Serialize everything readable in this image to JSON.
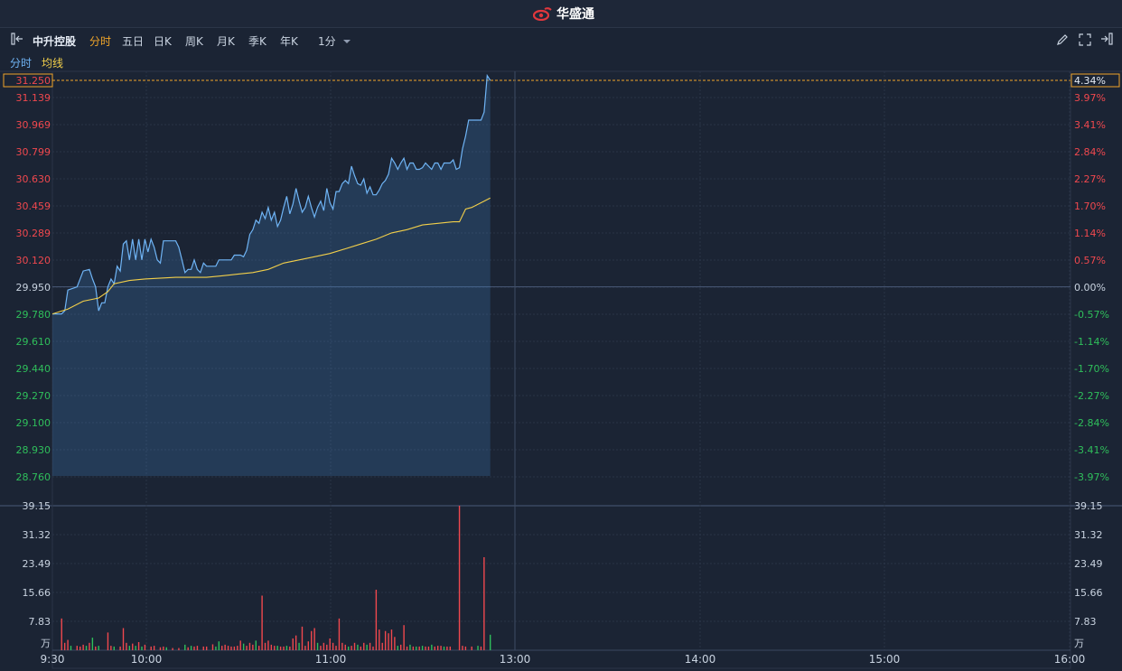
{
  "brand": {
    "name": "华盛通"
  },
  "toolbar": {
    "stock_name": "中升控股",
    "periods": [
      "分时",
      "五日",
      "日K",
      "周K",
      "月K",
      "季K",
      "年K"
    ],
    "interval": "1分"
  },
  "legend": {
    "price_label": "分时",
    "avg_label": "均线"
  },
  "colors": {
    "up": "#f0484e",
    "down": "#2fbf5b",
    "price_line": "#6fb4f5",
    "avg_line": "#f2cf4a",
    "accent": "#f0a52a"
  },
  "chart_data": {
    "type": "line",
    "prev_close": 29.95,
    "current_price_label": "31.250",
    "current_pct_label": "4.34%",
    "price_ticks": [
      "31.139",
      "30.969",
      "30.799",
      "30.630",
      "30.459",
      "30.289",
      "30.120",
      "29.950",
      "29.780",
      "29.610",
      "29.440",
      "29.270",
      "29.100",
      "28.930",
      "28.760"
    ],
    "pct_ticks": [
      "3.97%",
      "3.41%",
      "2.84%",
      "2.27%",
      "1.70%",
      "1.14%",
      "0.57%",
      "0.00%",
      "-0.57%",
      "-1.14%",
      "-1.70%",
      "-2.27%",
      "-2.84%",
      "-3.41%",
      "-3.97%"
    ],
    "x_ticks": [
      "9:30",
      "10:00",
      "11:00",
      "13:00",
      "14:00",
      "15:00",
      "16:00"
    ],
    "volume_ticks": [
      "39.15",
      "31.32",
      "23.49",
      "15.66",
      "7.83"
    ],
    "volume_unit": "万",
    "ylim": [
      28.76,
      31.25
    ],
    "volume_max": 39.15,
    "price_series": [
      [
        0,
        29.78
      ],
      [
        3,
        29.78
      ],
      [
        4,
        29.8
      ],
      [
        5,
        29.93
      ],
      [
        8,
        29.95
      ],
      [
        10,
        30.05
      ],
      [
        12,
        30.06
      ],
      [
        13,
        30.0
      ],
      [
        14,
        29.95
      ],
      [
        15,
        29.8
      ],
      [
        16,
        29.85
      ],
      [
        17,
        29.85
      ],
      [
        18,
        29.95
      ],
      [
        19,
        30.0
      ],
      [
        20,
        29.97
      ],
      [
        21,
        30.08
      ],
      [
        22,
        30.05
      ],
      [
        23,
        30.22
      ],
      [
        24,
        30.24
      ],
      [
        25,
        30.12
      ],
      [
        26,
        30.25
      ],
      [
        27,
        30.12
      ],
      [
        28,
        30.25
      ],
      [
        29,
        30.12
      ],
      [
        30,
        30.25
      ],
      [
        31,
        30.17
      ],
      [
        32,
        30.25
      ],
      [
        33,
        30.2
      ],
      [
        34,
        30.12
      ],
      [
        35,
        30.1
      ],
      [
        36,
        30.24
      ],
      [
        37,
        30.24
      ],
      [
        40,
        30.24
      ],
      [
        41,
        30.2
      ],
      [
        42,
        30.12
      ],
      [
        43,
        30.04
      ],
      [
        44,
        30.06
      ],
      [
        45,
        30.06
      ],
      [
        46,
        30.12
      ],
      [
        47,
        30.06
      ],
      [
        48,
        30.04
      ],
      [
        49,
        30.1
      ],
      [
        50,
        30.08
      ],
      [
        51,
        30.08
      ],
      [
        53,
        30.08
      ],
      [
        54,
        30.12
      ],
      [
        55,
        30.12
      ],
      [
        58,
        30.12
      ],
      [
        59,
        30.15
      ],
      [
        60,
        30.15
      ],
      [
        61,
        30.15
      ],
      [
        62,
        30.14
      ],
      [
        63,
        30.18
      ],
      [
        64,
        30.28
      ],
      [
        65,
        30.31
      ],
      [
        66,
        30.37
      ],
      [
        67,
        30.35
      ],
      [
        68,
        30.42
      ],
      [
        69,
        30.38
      ],
      [
        70,
        30.45
      ],
      [
        71,
        30.37
      ],
      [
        72,
        30.42
      ],
      [
        73,
        30.33
      ],
      [
        74,
        30.37
      ],
      [
        75,
        30.45
      ],
      [
        76,
        30.52
      ],
      [
        77,
        30.41
      ],
      [
        78,
        30.47
      ],
      [
        79,
        30.57
      ],
      [
        80,
        30.49
      ],
      [
        81,
        30.42
      ],
      [
        82,
        30.45
      ],
      [
        83,
        30.52
      ],
      [
        84,
        30.45
      ],
      [
        85,
        30.39
      ],
      [
        86,
        30.45
      ],
      [
        87,
        30.49
      ],
      [
        88,
        30.43
      ],
      [
        89,
        30.57
      ],
      [
        90,
        30.48
      ],
      [
        91,
        30.44
      ],
      [
        92,
        30.55
      ],
      [
        93,
        30.55
      ],
      [
        94,
        30.6
      ],
      [
        95,
        30.62
      ],
      [
        96,
        30.6
      ],
      [
        97,
        30.71
      ],
      [
        98,
        30.65
      ],
      [
        99,
        30.6
      ],
      [
        100,
        30.59
      ],
      [
        101,
        30.63
      ],
      [
        102,
        30.54
      ],
      [
        103,
        30.58
      ],
      [
        104,
        30.53
      ],
      [
        105,
        30.53
      ],
      [
        106,
        30.56
      ],
      [
        107,
        30.6
      ],
      [
        108,
        30.62
      ],
      [
        109,
        30.66
      ],
      [
        110,
        30.76
      ],
      [
        111,
        30.73
      ],
      [
        112,
        30.69
      ],
      [
        113,
        30.73
      ],
      [
        114,
        30.76
      ],
      [
        115,
        30.69
      ],
      [
        116,
        30.73
      ],
      [
        117,
        30.73
      ],
      [
        118,
        30.69
      ],
      [
        119,
        30.69
      ],
      [
        120,
        30.7
      ],
      [
        121,
        30.73
      ],
      [
        122,
        30.71
      ],
      [
        123,
        30.69
      ],
      [
        124,
        30.73
      ],
      [
        125,
        30.73
      ],
      [
        126,
        30.69
      ],
      [
        127,
        30.73
      ],
      [
        128,
        30.73
      ],
      [
        129,
        30.73
      ],
      [
        130,
        30.75
      ],
      [
        131,
        30.69
      ],
      [
        132,
        30.7
      ],
      [
        133,
        30.82
      ],
      [
        134,
        30.9
      ],
      [
        135,
        31.0
      ],
      [
        136,
        31.0
      ],
      [
        138,
        31.0
      ],
      [
        139,
        31.0
      ],
      [
        140,
        31.05
      ],
      [
        141,
        31.28
      ],
      [
        142,
        31.25
      ]
    ],
    "avg_series": [
      [
        0,
        29.78
      ],
      [
        5,
        29.81
      ],
      [
        10,
        29.86
      ],
      [
        15,
        29.88
      ],
      [
        18,
        29.92
      ],
      [
        20,
        29.97
      ],
      [
        25,
        29.99
      ],
      [
        30,
        30.0
      ],
      [
        40,
        30.01
      ],
      [
        50,
        30.01
      ],
      [
        55,
        30.02
      ],
      [
        60,
        30.03
      ],
      [
        65,
        30.04
      ],
      [
        70,
        30.06
      ],
      [
        75,
        30.1
      ],
      [
        80,
        30.12
      ],
      [
        85,
        30.14
      ],
      [
        90,
        30.16
      ],
      [
        95,
        30.19
      ],
      [
        100,
        30.22
      ],
      [
        105,
        30.25
      ],
      [
        110,
        30.29
      ],
      [
        115,
        30.31
      ],
      [
        120,
        30.34
      ],
      [
        125,
        30.35
      ],
      [
        130,
        30.36
      ],
      [
        132,
        30.36
      ],
      [
        134,
        30.44
      ],
      [
        136,
        30.45
      ],
      [
        140,
        30.49
      ],
      [
        142,
        30.51
      ]
    ],
    "volumes": [
      {
        "t": 3,
        "v": 8.6,
        "d": "up"
      },
      {
        "t": 4,
        "v": 2.0,
        "d": "up"
      },
      {
        "t": 5,
        "v": 2.8,
        "d": "up"
      },
      {
        "t": 6,
        "v": 1.2,
        "d": "down"
      },
      {
        "t": 8,
        "v": 1.2,
        "d": "up"
      },
      {
        "t": 9,
        "v": 1.0,
        "d": "up"
      },
      {
        "t": 10,
        "v": 1.5,
        "d": "up"
      },
      {
        "t": 11,
        "v": 1.2,
        "d": "down"
      },
      {
        "t": 12,
        "v": 2.0,
        "d": "up"
      },
      {
        "t": 13,
        "v": 3.4,
        "d": "down"
      },
      {
        "t": 14,
        "v": 1.0,
        "d": "up"
      },
      {
        "t": 15,
        "v": 1.2,
        "d": "down"
      },
      {
        "t": 18,
        "v": 4.8,
        "d": "up"
      },
      {
        "t": 19,
        "v": 1.2,
        "d": "up"
      },
      {
        "t": 20,
        "v": 1.0,
        "d": "down"
      },
      {
        "t": 22,
        "v": 1.0,
        "d": "up"
      },
      {
        "t": 23,
        "v": 6.0,
        "d": "up"
      },
      {
        "t": 24,
        "v": 2.0,
        "d": "up"
      },
      {
        "t": 25,
        "v": 1.2,
        "d": "down"
      },
      {
        "t": 26,
        "v": 1.8,
        "d": "up"
      },
      {
        "t": 27,
        "v": 1.2,
        "d": "down"
      },
      {
        "t": 28,
        "v": 2.2,
        "d": "up"
      },
      {
        "t": 29,
        "v": 1.0,
        "d": "down"
      },
      {
        "t": 30,
        "v": 1.5,
        "d": "up"
      },
      {
        "t": 32,
        "v": 1.0,
        "d": "up"
      },
      {
        "t": 33,
        "v": 1.2,
        "d": "up"
      },
      {
        "t": 35,
        "v": 0.8,
        "d": "up"
      },
      {
        "t": 36,
        "v": 1.0,
        "d": "up"
      },
      {
        "t": 37,
        "v": 0.8,
        "d": "down"
      },
      {
        "t": 39,
        "v": 0.6,
        "d": "up"
      },
      {
        "t": 41,
        "v": 0.6,
        "d": "up"
      },
      {
        "t": 43,
        "v": 1.5,
        "d": "down"
      },
      {
        "t": 44,
        "v": 0.8,
        "d": "up"
      },
      {
        "t": 45,
        "v": 1.2,
        "d": "down"
      },
      {
        "t": 46,
        "v": 1.0,
        "d": "up"
      },
      {
        "t": 47,
        "v": 1.2,
        "d": "up"
      },
      {
        "t": 49,
        "v": 1.0,
        "d": "up"
      },
      {
        "t": 50,
        "v": 1.0,
        "d": "up"
      },
      {
        "t": 52,
        "v": 1.6,
        "d": "up"
      },
      {
        "t": 53,
        "v": 1.0,
        "d": "down"
      },
      {
        "t": 54,
        "v": 2.4,
        "d": "down"
      },
      {
        "t": 55,
        "v": 1.2,
        "d": "up"
      },
      {
        "t": 56,
        "v": 1.5,
        "d": "up"
      },
      {
        "t": 57,
        "v": 1.2,
        "d": "up"
      },
      {
        "t": 58,
        "v": 1.0,
        "d": "up"
      },
      {
        "t": 59,
        "v": 1.0,
        "d": "up"
      },
      {
        "t": 60,
        "v": 1.2,
        "d": "up"
      },
      {
        "t": 61,
        "v": 2.6,
        "d": "up"
      },
      {
        "t": 62,
        "v": 1.8,
        "d": "down"
      },
      {
        "t": 63,
        "v": 1.2,
        "d": "up"
      },
      {
        "t": 64,
        "v": 2.0,
        "d": "up"
      },
      {
        "t": 65,
        "v": 1.5,
        "d": "up"
      },
      {
        "t": 66,
        "v": 2.6,
        "d": "down"
      },
      {
        "t": 67,
        "v": 1.2,
        "d": "up"
      },
      {
        "t": 68,
        "v": 14.8,
        "d": "up"
      },
      {
        "t": 69,
        "v": 2.0,
        "d": "up"
      },
      {
        "t": 70,
        "v": 2.6,
        "d": "up"
      },
      {
        "t": 71,
        "v": 1.5,
        "d": "up"
      },
      {
        "t": 72,
        "v": 1.2,
        "d": "up"
      },
      {
        "t": 73,
        "v": 1.2,
        "d": "down"
      },
      {
        "t": 74,
        "v": 1.0,
        "d": "up"
      },
      {
        "t": 75,
        "v": 1.0,
        "d": "up"
      },
      {
        "t": 76,
        "v": 1.2,
        "d": "down"
      },
      {
        "t": 77,
        "v": 1.0,
        "d": "up"
      },
      {
        "t": 78,
        "v": 3.2,
        "d": "up"
      },
      {
        "t": 79,
        "v": 4.0,
        "d": "up"
      },
      {
        "t": 80,
        "v": 2.0,
        "d": "down"
      },
      {
        "t": 81,
        "v": 6.4,
        "d": "up"
      },
      {
        "t": 82,
        "v": 1.2,
        "d": "up"
      },
      {
        "t": 83,
        "v": 2.4,
        "d": "up"
      },
      {
        "t": 84,
        "v": 5.2,
        "d": "up"
      },
      {
        "t": 85,
        "v": 6.0,
        "d": "up"
      },
      {
        "t": 86,
        "v": 2.0,
        "d": "down"
      },
      {
        "t": 87,
        "v": 1.2,
        "d": "up"
      },
      {
        "t": 88,
        "v": 2.0,
        "d": "up"
      },
      {
        "t": 89,
        "v": 1.5,
        "d": "up"
      },
      {
        "t": 90,
        "v": 3.2,
        "d": "up"
      },
      {
        "t": 91,
        "v": 2.0,
        "d": "up"
      },
      {
        "t": 92,
        "v": 1.2,
        "d": "up"
      },
      {
        "t": 93,
        "v": 8.6,
        "d": "up"
      },
      {
        "t": 94,
        "v": 2.0,
        "d": "up"
      },
      {
        "t": 95,
        "v": 1.5,
        "d": "up"
      },
      {
        "t": 96,
        "v": 1.0,
        "d": "down"
      },
      {
        "t": 97,
        "v": 1.2,
        "d": "up"
      },
      {
        "t": 98,
        "v": 2.0,
        "d": "up"
      },
      {
        "t": 99,
        "v": 1.5,
        "d": "down"
      },
      {
        "t": 100,
        "v": 1.0,
        "d": "up"
      },
      {
        "t": 101,
        "v": 2.0,
        "d": "up"
      },
      {
        "t": 102,
        "v": 1.5,
        "d": "down"
      },
      {
        "t": 103,
        "v": 2.0,
        "d": "up"
      },
      {
        "t": 104,
        "v": 1.0,
        "d": "up"
      },
      {
        "t": 105,
        "v": 16.4,
        "d": "up"
      },
      {
        "t": 106,
        "v": 5.6,
        "d": "up"
      },
      {
        "t": 107,
        "v": 2.0,
        "d": "up"
      },
      {
        "t": 108,
        "v": 5.2,
        "d": "up"
      },
      {
        "t": 109,
        "v": 4.6,
        "d": "up"
      },
      {
        "t": 110,
        "v": 5.6,
        "d": "up"
      },
      {
        "t": 111,
        "v": 3.6,
        "d": "up"
      },
      {
        "t": 112,
        "v": 1.2,
        "d": "down"
      },
      {
        "t": 113,
        "v": 1.5,
        "d": "up"
      },
      {
        "t": 114,
        "v": 6.8,
        "d": "up"
      },
      {
        "t": 115,
        "v": 1.0,
        "d": "up"
      },
      {
        "t": 116,
        "v": 1.5,
        "d": "down"
      },
      {
        "t": 117,
        "v": 1.0,
        "d": "up"
      },
      {
        "t": 118,
        "v": 1.0,
        "d": "down"
      },
      {
        "t": 119,
        "v": 1.0,
        "d": "up"
      },
      {
        "t": 120,
        "v": 1.2,
        "d": "down"
      },
      {
        "t": 121,
        "v": 1.0,
        "d": "up"
      },
      {
        "t": 122,
        "v": 1.0,
        "d": "up"
      },
      {
        "t": 123,
        "v": 1.5,
        "d": "down"
      },
      {
        "t": 124,
        "v": 1.0,
        "d": "up"
      },
      {
        "t": 125,
        "v": 1.2,
        "d": "up"
      },
      {
        "t": 126,
        "v": 1.2,
        "d": "up"
      },
      {
        "t": 127,
        "v": 1.0,
        "d": "down"
      },
      {
        "t": 128,
        "v": 1.0,
        "d": "up"
      },
      {
        "t": 129,
        "v": 1.0,
        "d": "up"
      },
      {
        "t": 132,
        "v": 39.15,
        "d": "up"
      },
      {
        "t": 133,
        "v": 1.2,
        "d": "up"
      },
      {
        "t": 134,
        "v": 1.0,
        "d": "up"
      },
      {
        "t": 136,
        "v": 1.0,
        "d": "up"
      },
      {
        "t": 138,
        "v": 1.2,
        "d": "down"
      },
      {
        "t": 139,
        "v": 1.0,
        "d": "up"
      },
      {
        "t": 140,
        "v": 25.2,
        "d": "up"
      },
      {
        "t": 142,
        "v": 4.2,
        "d": "down"
      }
    ]
  }
}
